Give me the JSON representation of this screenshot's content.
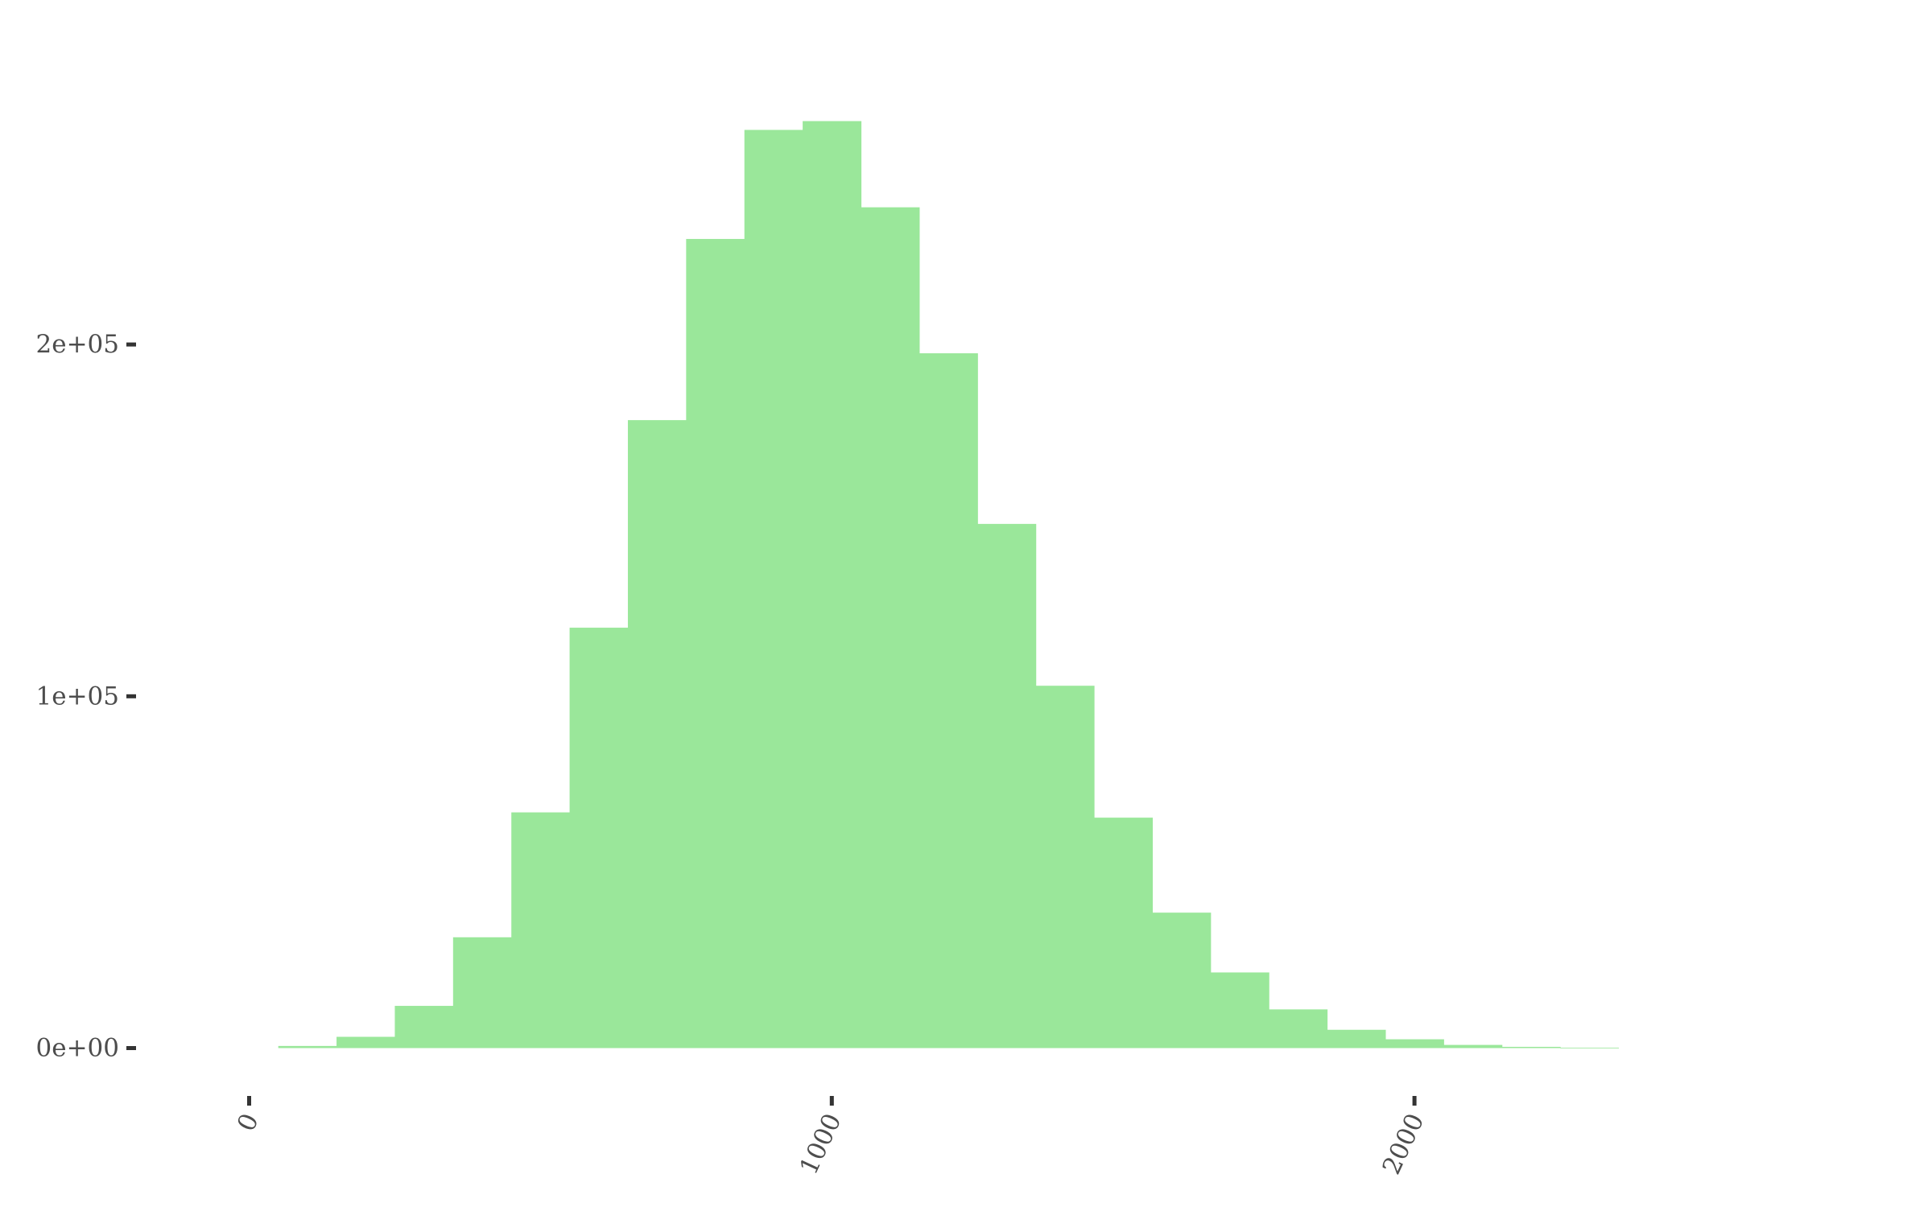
{
  "chart_data": {
    "type": "bar",
    "title": "",
    "xlabel": "",
    "ylabel": "",
    "bin_width": 100,
    "bins": [
      {
        "x0": 50,
        "x1": 150,
        "count": 600
      },
      {
        "x0": 150,
        "x1": 250,
        "count": 3200
      },
      {
        "x0": 250,
        "x1": 350,
        "count": 12000
      },
      {
        "x0": 350,
        "x1": 450,
        "count": 31500
      },
      {
        "x0": 450,
        "x1": 550,
        "count": 67000
      },
      {
        "x0": 550,
        "x1": 650,
        "count": 119500
      },
      {
        "x0": 650,
        "x1": 750,
        "count": 178500
      },
      {
        "x0": 750,
        "x1": 850,
        "count": 230000
      },
      {
        "x0": 850,
        "x1": 950,
        "count": 261000
      },
      {
        "x0": 950,
        "x1": 1050,
        "count": 263500
      },
      {
        "x0": 1050,
        "x1": 1150,
        "count": 239000
      },
      {
        "x0": 1150,
        "x1": 1250,
        "count": 197500
      },
      {
        "x0": 1250,
        "x1": 1350,
        "count": 149000
      },
      {
        "x0": 1350,
        "x1": 1450,
        "count": 103000
      },
      {
        "x0": 1450,
        "x1": 1550,
        "count": 65500
      },
      {
        "x0": 1550,
        "x1": 1650,
        "count": 38500
      },
      {
        "x0": 1650,
        "x1": 1750,
        "count": 21500
      },
      {
        "x0": 1750,
        "x1": 1850,
        "count": 11000
      },
      {
        "x0": 1850,
        "x1": 1950,
        "count": 5200
      },
      {
        "x0": 1950,
        "x1": 2050,
        "count": 2500
      },
      {
        "x0": 2050,
        "x1": 2150,
        "count": 900
      },
      {
        "x0": 2150,
        "x1": 2250,
        "count": 350
      },
      {
        "x0": 2250,
        "x1": 2350,
        "count": 120
      }
    ],
    "xlim": [
      0,
      2350
    ],
    "ylim": [
      0,
      263500
    ],
    "x_ticks": [
      {
        "value": 0,
        "label": "0"
      },
      {
        "value": 1000,
        "label": "1000"
      },
      {
        "value": 2000,
        "label": "2000"
      }
    ],
    "y_ticks": [
      {
        "value": 0,
        "label": "0e+00"
      },
      {
        "value": 100000,
        "label": "1e+05"
      },
      {
        "value": 200000,
        "label": "2e+05"
      }
    ],
    "x_tick_label_rotation_deg": -65,
    "bar_color": "#9ae79a",
    "background": "#ffffff",
    "grid": false,
    "legend": "none"
  }
}
